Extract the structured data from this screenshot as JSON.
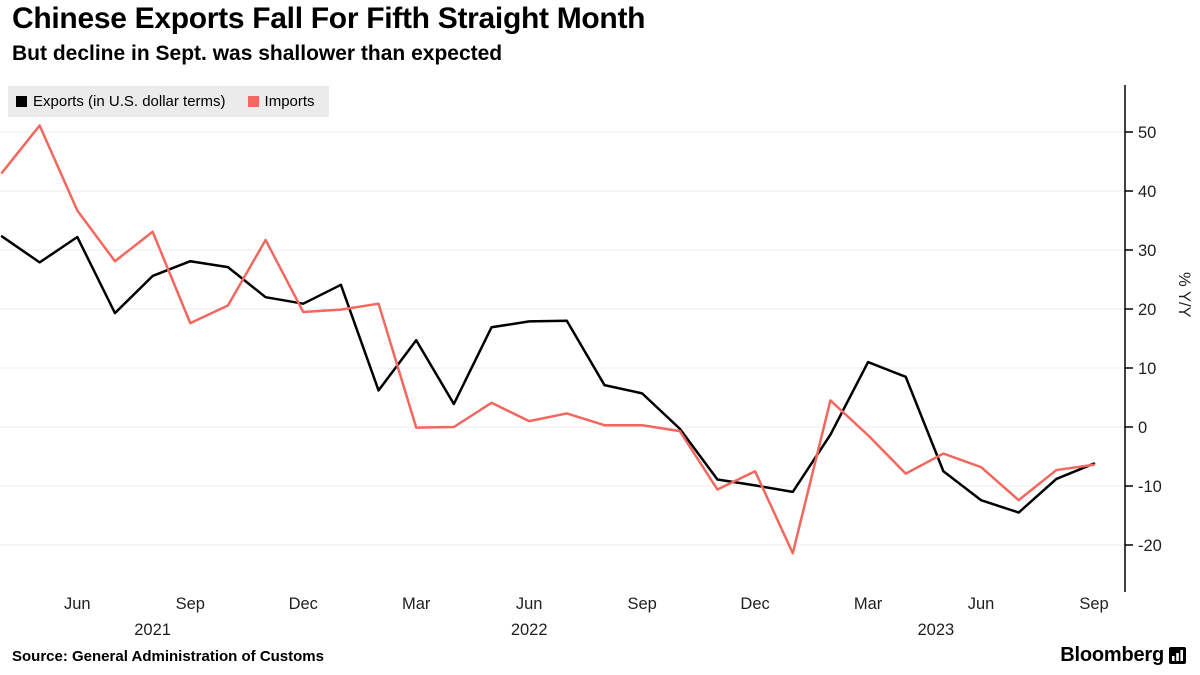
{
  "header": {
    "title": "Chinese Exports Fall For Fifth Straight Month",
    "subtitle": "But decline in Sept. was shallower than expected"
  },
  "legend": [
    {
      "label": "Exports (in U.S. dollar terms)",
      "color": "#000000"
    },
    {
      "label": "Imports",
      "color": "#F2685F"
    }
  ],
  "colors": {
    "background": "#ffffff",
    "legend_background": "#ebebeb",
    "grid": "#ececec",
    "axis": "#000000",
    "exports_line": "#000000",
    "imports_line": "#F2685F"
  },
  "chart_data": {
    "type": "line",
    "x": [
      "Apr '21",
      "May '21",
      "Jun '21",
      "Jul '21",
      "Aug '21",
      "Sep '21",
      "Oct '21",
      "Nov '21",
      "Dec '21",
      "Jan '22",
      "Feb '22",
      "Mar '22",
      "Apr '22",
      "May '22",
      "Jun '22",
      "Jul '22",
      "Aug '22",
      "Sep '22",
      "Oct '22",
      "Nov '22",
      "Dec '22",
      "Jan '23",
      "Feb '23",
      "Mar '23",
      "Apr '23",
      "May '23",
      "Jun '23",
      "Jul '23",
      "Aug '23",
      "Sep '23"
    ],
    "series": [
      {
        "name": "Exports (in U.S. dollar terms)",
        "color": "#000000",
        "values": [
          32.3,
          27.9,
          32.2,
          19.3,
          25.6,
          28.1,
          27.1,
          22.0,
          20.9,
          24.1,
          6.2,
          14.7,
          3.9,
          16.9,
          17.9,
          18.0,
          7.1,
          5.7,
          -0.3,
          -8.9,
          -9.9,
          -11.0,
          -1.3,
          11.0,
          8.5,
          -7.5,
          -12.4,
          -14.5,
          -8.8,
          -6.2
        ]
      },
      {
        "name": "Imports",
        "color": "#F2685F",
        "values": [
          43.1,
          51.1,
          36.7,
          28.1,
          33.1,
          17.6,
          20.6,
          31.7,
          19.5,
          19.9,
          20.9,
          -0.1,
          0.0,
          4.1,
          1.0,
          2.3,
          0.3,
          0.3,
          -0.7,
          -10.6,
          -7.5,
          -21.4,
          4.5,
          -1.4,
          -7.9,
          -4.5,
          -6.8,
          -12.4,
          -7.3,
          -6.4
        ]
      }
    ],
    "title": "Chinese Exports Fall For Fifth Straight Month",
    "subtitle": "But decline in Sept. was shallower than expected",
    "xlabel": "",
    "ylabel": "% Y/Y",
    "ylim": [
      -28,
      58
    ],
    "yticks": [
      50,
      40,
      30,
      20,
      10,
      0,
      -10,
      -20
    ],
    "xticks": [
      {
        "i": 2,
        "label": "Jun"
      },
      {
        "i": 5,
        "label": "Sep"
      },
      {
        "i": 8,
        "label": "Dec"
      },
      {
        "i": 11,
        "label": "Mar"
      },
      {
        "i": 14,
        "label": "Jun"
      },
      {
        "i": 17,
        "label": "Sep"
      },
      {
        "i": 20,
        "label": "Dec"
      },
      {
        "i": 23,
        "label": "Mar"
      },
      {
        "i": 26,
        "label": "Jun"
      },
      {
        "i": 29,
        "label": "Sep"
      }
    ],
    "year_labels": [
      {
        "label": "2021",
        "i": 4.0
      },
      {
        "label": "2022",
        "i": 14.0
      },
      {
        "label": "2023",
        "i": 24.8
      }
    ],
    "grid": "horizontal",
    "legend_position": "top-left",
    "axis_side": "right"
  },
  "footer": {
    "source": "Source: General Administration of Customs",
    "brand": "Bloomberg"
  }
}
